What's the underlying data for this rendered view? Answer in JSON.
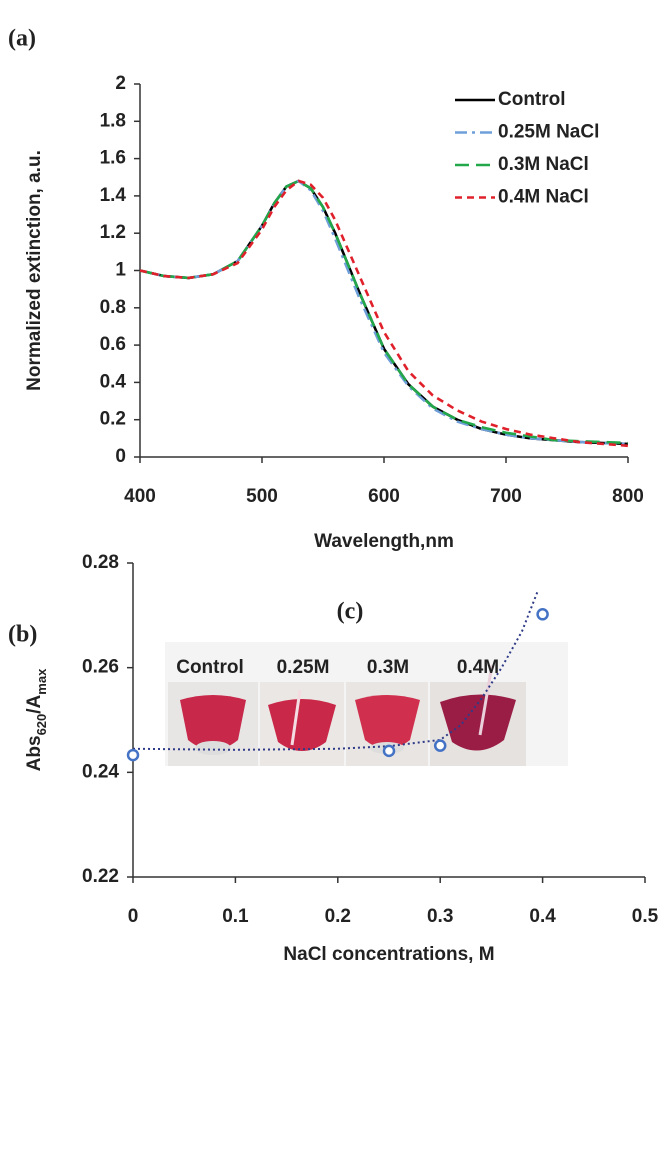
{
  "chart_data": [
    {
      "type": "line",
      "panel_label": "(a)",
      "xlabel": "Wavelength,nm",
      "ylabel": "Normalized extinction, a.u.",
      "x": [
        400,
        420,
        440,
        460,
        480,
        500,
        510,
        520,
        530,
        540,
        550,
        560,
        580,
        600,
        620,
        640,
        660,
        680,
        700,
        720,
        740,
        760,
        780,
        800
      ],
      "series": [
        {
          "name": "Control",
          "color": "#000000",
          "linestyle": "solid",
          "values": [
            1.0,
            0.97,
            0.96,
            0.98,
            1.05,
            1.24,
            1.36,
            1.45,
            1.48,
            1.44,
            1.34,
            1.2,
            0.88,
            0.58,
            0.39,
            0.27,
            0.2,
            0.15,
            0.12,
            0.1,
            0.09,
            0.08,
            0.075,
            0.07
          ]
        },
        {
          "name": "0.25M NaCl",
          "color": "#6f9fd8",
          "linestyle": "dashdot",
          "values": [
            1.0,
            0.97,
            0.96,
            0.98,
            1.05,
            1.24,
            1.36,
            1.45,
            1.48,
            1.43,
            1.32,
            1.17,
            0.85,
            0.56,
            0.38,
            0.26,
            0.19,
            0.15,
            0.12,
            0.1,
            0.09,
            0.08,
            0.075,
            0.07
          ]
        },
        {
          "name": "0.3M NaCl",
          "color": "#22a84a",
          "linestyle": "longdash",
          "values": [
            1.0,
            0.97,
            0.96,
            0.98,
            1.05,
            1.24,
            1.36,
            1.45,
            1.48,
            1.44,
            1.34,
            1.2,
            0.88,
            0.58,
            0.39,
            0.27,
            0.2,
            0.16,
            0.13,
            0.11,
            0.09,
            0.085,
            0.08,
            0.075
          ]
        },
        {
          "name": "0.4M NaCl",
          "color": "#e0202a",
          "linestyle": "dash",
          "values": [
            1.0,
            0.97,
            0.96,
            0.98,
            1.04,
            1.22,
            1.34,
            1.43,
            1.48,
            1.46,
            1.39,
            1.27,
            0.97,
            0.67,
            0.46,
            0.33,
            0.25,
            0.19,
            0.15,
            0.12,
            0.1,
            0.08,
            0.07,
            0.06
          ]
        }
      ],
      "xlim": [
        400,
        800
      ],
      "xticks": [
        400,
        500,
        600,
        700,
        800
      ],
      "ylim": [
        0,
        2
      ],
      "yticks": [
        0,
        0.2,
        0.4,
        0.6,
        0.8,
        1,
        1.2,
        1.4,
        1.6,
        1.8,
        2
      ]
    },
    {
      "type": "scatter",
      "panel_label": "(b)",
      "xlabel": "NaCl concentrations, M",
      "ylabel": [
        "Abs",
        "620",
        "/A",
        "max"
      ],
      "x": [
        0,
        0.25,
        0.3,
        0.4
      ],
      "values": [
        0.2433,
        0.2441,
        0.2451,
        0.2702
      ],
      "color": "#4472c4",
      "trendline": {
        "color": "#2e3a87",
        "linestyle": "dotted",
        "x": [
          0,
          0.1,
          0.2,
          0.25,
          0.3,
          0.32,
          0.34,
          0.36,
          0.38,
          0.395
        ],
        "y": [
          0.2445,
          0.2443,
          0.2445,
          0.245,
          0.2462,
          0.249,
          0.254,
          0.26,
          0.267,
          0.2745
        ]
      },
      "xlim": [
        0,
        0.5
      ],
      "xticks": [
        0,
        0.1,
        0.2,
        0.3,
        0.4,
        0.5
      ],
      "ylim": [
        0.22,
        0.28
      ],
      "yticks": [
        0.22,
        0.24,
        0.26,
        0.28
      ]
    }
  ],
  "inset": {
    "label": "(c)",
    "tubes": [
      "Control",
      "0.25M",
      "0.3M",
      "0.4M"
    ]
  }
}
